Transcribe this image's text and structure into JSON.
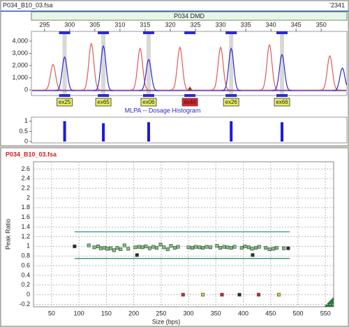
{
  "window": {
    "title": "P034_B10_03.fsa",
    "id": "'2341"
  },
  "chart_data": [
    {
      "type": "electropherogram",
      "panel": "P034 DMD",
      "xlim": [
        292.4,
        355.1
      ],
      "xticks": [
        295,
        300,
        305,
        310,
        315,
        320,
        325,
        330,
        335,
        340,
        345,
        350
      ],
      "ylim": [
        -450,
        4800
      ],
      "yticks": [
        0,
        {
          "value": 1000,
          "label": "1,000"
        },
        {
          "value": 2000,
          "label": "2,000"
        },
        {
          "value": 3000,
          "label": "3,000"
        },
        {
          "value": 4000,
          "label": "4,000"
        }
      ],
      "series": [
        {
          "color": "#e05a5a",
          "x": [
            296.7,
            304.3,
            314.0,
            321.9,
            330.0,
            339.7,
            351.7
          ],
          "values": [
            2100,
            3800,
            3400,
            3500,
            3500,
            3700,
            2800
          ]
        },
        {
          "color": "#2a2ad0",
          "x": [
            299.0,
            306.7,
            315.7,
            332.1,
            342.2,
            354.2
          ],
          "values": [
            2700,
            3600,
            2500,
            3400,
            2900,
            1800
          ]
        }
      ],
      "bins": {
        "labels": [
          "ex25",
          "ex65",
          "ex06",
          "ex44",
          "ex26",
          "ex66"
        ],
        "x": [
          299.0,
          306.7,
          315.7,
          323.9,
          332.1,
          342.2
        ],
        "flagged": [
          false,
          false,
          false,
          true,
          false,
          false
        ],
        "color": "#e8f060",
        "flag_color": "#e02020"
      }
    },
    {
      "type": "bar",
      "title": "MLPA -- Dosage Histogram",
      "color": "#1a1ae0",
      "xlim": [
        292.4,
        355.1
      ],
      "x": [
        299.0,
        306.7,
        315.7,
        332.1,
        342.2
      ],
      "values": [
        1.0,
        0.9,
        0.95,
        1.0,
        0.95
      ],
      "ylim": [
        -0.07,
        1.2
      ],
      "yticks": [
        0,
        0.5,
        1
      ]
    },
    {
      "type": "scatter",
      "title": "P034_B10_03.fsa",
      "xlabel": "Size (bps)",
      "ylabel": "Peak Ratio",
      "xlim": [
        17,
        565
      ],
      "xticks": [
        50,
        100,
        150,
        200,
        250,
        300,
        350,
        400,
        450,
        500,
        550
      ],
      "ylim": [
        -0.25,
        2.75
      ],
      "yticks": [
        -0.2,
        0,
        0.2,
        0.4,
        0.6,
        0.8,
        1,
        1.2,
        1.4,
        1.6,
        1.8,
        2,
        2.2,
        2.4,
        2.6
      ],
      "grid": true,
      "thresholds": {
        "values": [
          0.75,
          1.3
        ],
        "xrange": [
          92,
          485
        ],
        "color": "#2a9a6a"
      },
      "series": [
        {
          "color": "#7cc870",
          "x": [
            118,
            128,
            135,
            140,
            147,
            152,
            158,
            164,
            170,
            176,
            183,
            190,
            203,
            210,
            216,
            222,
            229,
            236,
            242,
            249,
            255,
            262,
            268,
            275,
            281,
            300,
            307,
            313,
            320,
            326,
            333,
            340,
            352,
            358,
            365,
            371,
            378,
            384,
            397,
            403,
            410,
            416,
            423,
            429,
            441,
            448,
            455,
            461,
            474
          ],
          "values": [
            1.02,
            0.98,
            1.0,
            0.96,
            0.97,
            0.95,
            0.96,
            0.92,
            0.97,
            0.94,
            1.02,
            0.95,
            0.98,
            0.99,
            0.98,
            1.0,
            0.96,
            0.99,
            0.97,
            1.04,
            0.98,
            0.94,
            1.01,
            0.97,
            0.99,
            0.98,
            0.97,
            0.99,
            0.98,
            0.97,
            0.99,
            0.98,
            1.01,
            0.97,
            0.99,
            0.98,
            0.97,
            0.99,
            0.97,
            1.0,
            0.98,
            0.95,
            0.97,
            0.99,
            0.97,
            0.94,
            0.95,
            0.97,
            0.96
          ]
        },
        {
          "color": "#1e3a1e",
          "x": [
            92,
            206,
            417,
            482,
            393
          ],
          "values": [
            1.0,
            0.82,
            0.82,
            0.96,
            0
          ]
        },
        {
          "color": "#d03030",
          "x": [
            290,
            361,
            428
          ],
          "values": [
            0,
            0,
            0
          ]
        },
        {
          "color": "#e0d040",
          "x": [
            326,
            465
          ],
          "values": [
            0,
            0
          ]
        }
      ]
    }
  ]
}
